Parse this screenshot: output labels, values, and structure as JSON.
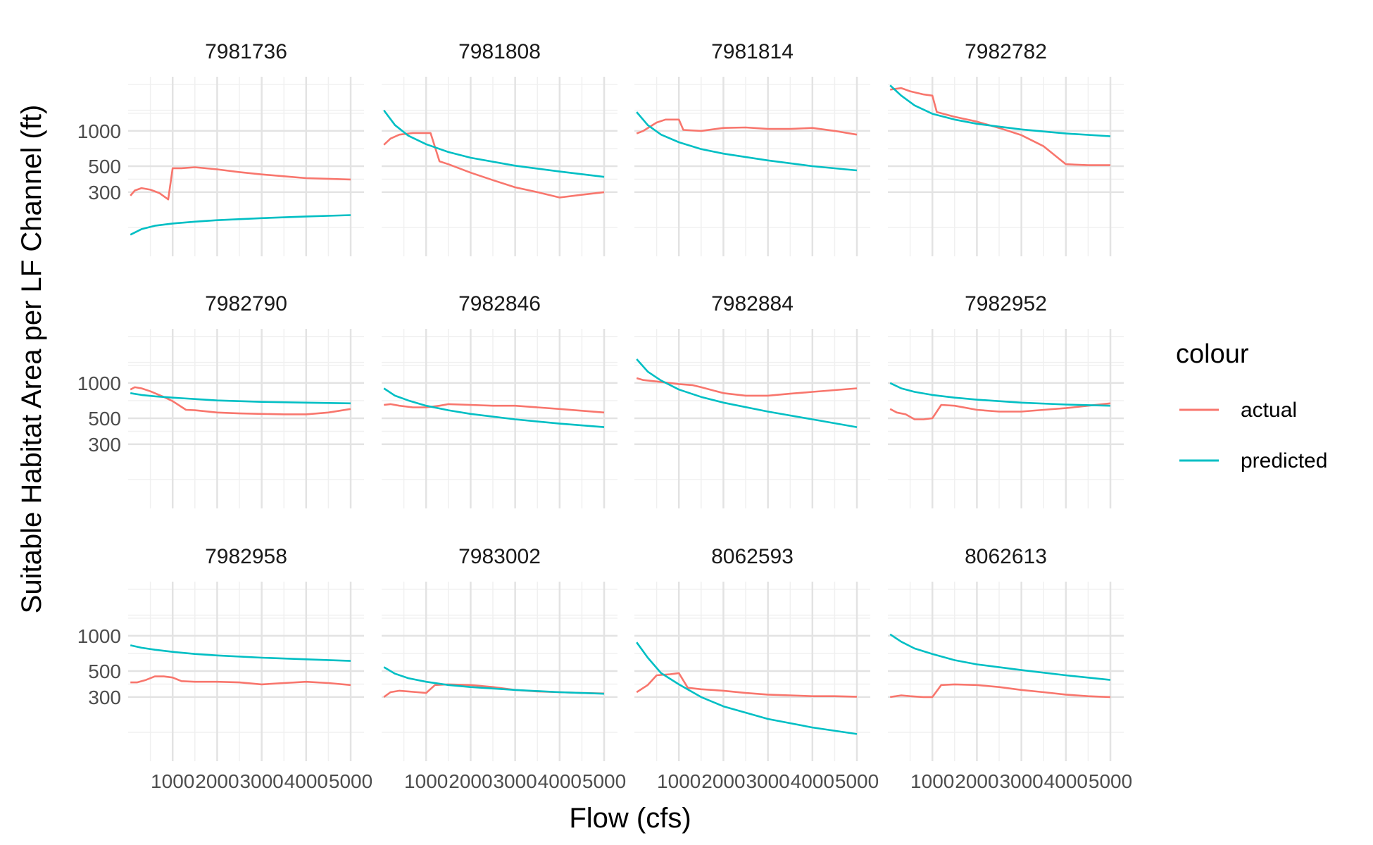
{
  "chart_data": {
    "type": "line",
    "facet_layout": "3 rows x 4 columns, shared axes",
    "xlabel": "Flow (cfs)",
    "ylabel": "Suitable Habitat Area per LF Channel (ft)",
    "y_scale": "log",
    "xlim": [
      0,
      5300
    ],
    "ylim": [
      85,
      2900
    ],
    "x_ticks": [
      1000,
      2000,
      3000,
      4000,
      5000
    ],
    "x_tick_labels": [
      "1000",
      "2000",
      "3000",
      "4000",
      "5000"
    ],
    "y_ticks": [
      300,
      500,
      1000
    ],
    "y_tick_labels": [
      "300",
      "500",
      "1000"
    ],
    "grid": true,
    "legend": {
      "title": "colour",
      "position": "right",
      "entries": [
        {
          "label": "actual",
          "color": "#F8766D"
        },
        {
          "label": "predicted",
          "color": "#00BFC4"
        }
      ]
    },
    "series_colors": {
      "actual": "#F8766D",
      "predicted": "#00BFC4"
    },
    "panels": [
      {
        "title": "7981736",
        "actual": [
          [
            50,
            280
          ],
          [
            150,
            310
          ],
          [
            300,
            325
          ],
          [
            500,
            315
          ],
          [
            700,
            295
          ],
          [
            900,
            260
          ],
          [
            1000,
            480
          ],
          [
            1200,
            480
          ],
          [
            1500,
            490
          ],
          [
            2000,
            470
          ],
          [
            2500,
            445
          ],
          [
            3000,
            425
          ],
          [
            3500,
            410
          ],
          [
            4000,
            395
          ],
          [
            4500,
            390
          ],
          [
            5000,
            385
          ]
        ],
        "predicted": [
          [
            50,
            130
          ],
          [
            300,
            145
          ],
          [
            600,
            155
          ],
          [
            1000,
            162
          ],
          [
            1500,
            168
          ],
          [
            2000,
            173
          ],
          [
            3000,
            180
          ],
          [
            4000,
            186
          ],
          [
            5000,
            191
          ]
        ]
      },
      {
        "title": "7981808",
        "actual": [
          [
            50,
            760
          ],
          [
            200,
            860
          ],
          [
            400,
            930
          ],
          [
            700,
            960
          ],
          [
            1000,
            960
          ],
          [
            1100,
            960
          ],
          [
            1300,
            550
          ],
          [
            1500,
            520
          ],
          [
            2000,
            440
          ],
          [
            2500,
            380
          ],
          [
            3000,
            330
          ],
          [
            3500,
            300
          ],
          [
            4000,
            270
          ],
          [
            4500,
            285
          ],
          [
            5000,
            300
          ]
        ],
        "predicted": [
          [
            50,
            1500
          ],
          [
            300,
            1120
          ],
          [
            600,
            910
          ],
          [
            1000,
            770
          ],
          [
            1500,
            660
          ],
          [
            2000,
            590
          ],
          [
            3000,
            505
          ],
          [
            4000,
            450
          ],
          [
            5000,
            405
          ]
        ]
      },
      {
        "title": "7981814",
        "actual": [
          [
            50,
            950
          ],
          [
            200,
            1000
          ],
          [
            500,
            1180
          ],
          [
            700,
            1250
          ],
          [
            1000,
            1250
          ],
          [
            1100,
            1020
          ],
          [
            1500,
            1000
          ],
          [
            2000,
            1060
          ],
          [
            2500,
            1070
          ],
          [
            3000,
            1040
          ],
          [
            3500,
            1040
          ],
          [
            4000,
            1060
          ],
          [
            4500,
            1000
          ],
          [
            5000,
            930
          ]
        ],
        "predicted": [
          [
            50,
            1450
          ],
          [
            300,
            1120
          ],
          [
            600,
            930
          ],
          [
            1000,
            800
          ],
          [
            1500,
            700
          ],
          [
            2000,
            640
          ],
          [
            3000,
            560
          ],
          [
            4000,
            500
          ],
          [
            5000,
            460
          ]
        ]
      },
      {
        "title": "7982782",
        "actual": [
          [
            50,
            2250
          ],
          [
            300,
            2320
          ],
          [
            500,
            2180
          ],
          [
            800,
            2050
          ],
          [
            1000,
            2000
          ],
          [
            1100,
            1450
          ],
          [
            1500,
            1320
          ],
          [
            2000,
            1200
          ],
          [
            2500,
            1060
          ],
          [
            3000,
            920
          ],
          [
            3500,
            740
          ],
          [
            4000,
            520
          ],
          [
            4500,
            510
          ],
          [
            5000,
            510
          ]
        ],
        "predicted": [
          [
            50,
            2450
          ],
          [
            300,
            2000
          ],
          [
            600,
            1650
          ],
          [
            1000,
            1400
          ],
          [
            1500,
            1250
          ],
          [
            2000,
            1150
          ],
          [
            3000,
            1030
          ],
          [
            4000,
            950
          ],
          [
            5000,
            900
          ]
        ]
      },
      {
        "title": "7982790",
        "actual": [
          [
            50,
            880
          ],
          [
            150,
            920
          ],
          [
            300,
            900
          ],
          [
            500,
            850
          ],
          [
            800,
            760
          ],
          [
            1000,
            700
          ],
          [
            1300,
            590
          ],
          [
            1500,
            585
          ],
          [
            2000,
            560
          ],
          [
            2500,
            550
          ],
          [
            3000,
            545
          ],
          [
            3500,
            540
          ],
          [
            4000,
            540
          ],
          [
            4500,
            560
          ],
          [
            5000,
            600
          ]
        ],
        "predicted": [
          [
            50,
            820
          ],
          [
            300,
            790
          ],
          [
            600,
            770
          ],
          [
            1000,
            750
          ],
          [
            1500,
            730
          ],
          [
            2000,
            710
          ],
          [
            3000,
            690
          ],
          [
            4000,
            680
          ],
          [
            5000,
            670
          ]
        ]
      },
      {
        "title": "7982846",
        "actual": [
          [
            50,
            650
          ],
          [
            200,
            660
          ],
          [
            400,
            640
          ],
          [
            700,
            620
          ],
          [
            1000,
            620
          ],
          [
            1300,
            640
          ],
          [
            1500,
            660
          ],
          [
            2000,
            650
          ],
          [
            2500,
            640
          ],
          [
            3000,
            640
          ],
          [
            3500,
            620
          ],
          [
            4000,
            600
          ],
          [
            4500,
            580
          ],
          [
            5000,
            560
          ]
        ],
        "predicted": [
          [
            50,
            900
          ],
          [
            300,
            780
          ],
          [
            600,
            710
          ],
          [
            1000,
            640
          ],
          [
            1500,
            585
          ],
          [
            2000,
            545
          ],
          [
            3000,
            490
          ],
          [
            4000,
            450
          ],
          [
            5000,
            420
          ]
        ]
      },
      {
        "title": "7982884",
        "actual": [
          [
            50,
            1100
          ],
          [
            200,
            1060
          ],
          [
            400,
            1040
          ],
          [
            700,
            1010
          ],
          [
            1000,
            980
          ],
          [
            1300,
            960
          ],
          [
            1500,
            920
          ],
          [
            2000,
            820
          ],
          [
            2500,
            780
          ],
          [
            3000,
            780
          ],
          [
            3500,
            810
          ],
          [
            4000,
            840
          ],
          [
            4500,
            870
          ],
          [
            5000,
            900
          ]
        ],
        "predicted": [
          [
            50,
            1600
          ],
          [
            300,
            1250
          ],
          [
            600,
            1050
          ],
          [
            1000,
            880
          ],
          [
            1500,
            760
          ],
          [
            2000,
            680
          ],
          [
            3000,
            570
          ],
          [
            4000,
            490
          ],
          [
            5000,
            420
          ]
        ]
      },
      {
        "title": "7982952",
        "actual": [
          [
            50,
            600
          ],
          [
            200,
            560
          ],
          [
            400,
            540
          ],
          [
            600,
            490
          ],
          [
            800,
            490
          ],
          [
            1000,
            500
          ],
          [
            1200,
            650
          ],
          [
            1500,
            640
          ],
          [
            2000,
            590
          ],
          [
            2500,
            570
          ],
          [
            3000,
            570
          ],
          [
            3500,
            590
          ],
          [
            4000,
            610
          ],
          [
            4500,
            640
          ],
          [
            5000,
            670
          ]
        ],
        "predicted": [
          [
            50,
            1000
          ],
          [
            300,
            900
          ],
          [
            600,
            840
          ],
          [
            1000,
            790
          ],
          [
            1500,
            750
          ],
          [
            2000,
            720
          ],
          [
            3000,
            680
          ],
          [
            4000,
            655
          ],
          [
            5000,
            640
          ]
        ]
      },
      {
        "title": "7982958",
        "actual": [
          [
            50,
            400
          ],
          [
            200,
            400
          ],
          [
            400,
            420
          ],
          [
            600,
            450
          ],
          [
            800,
            450
          ],
          [
            1000,
            440
          ],
          [
            1200,
            410
          ],
          [
            1500,
            405
          ],
          [
            2000,
            405
          ],
          [
            2500,
            400
          ],
          [
            3000,
            385
          ],
          [
            3500,
            395
          ],
          [
            4000,
            405
          ],
          [
            4500,
            395
          ],
          [
            5000,
            380
          ]
        ],
        "predicted": [
          [
            50,
            830
          ],
          [
            300,
            790
          ],
          [
            600,
            760
          ],
          [
            1000,
            730
          ],
          [
            1500,
            700
          ],
          [
            2000,
            680
          ],
          [
            3000,
            650
          ],
          [
            4000,
            630
          ],
          [
            5000,
            610
          ]
        ]
      },
      {
        "title": "7983002",
        "actual": [
          [
            50,
            300
          ],
          [
            200,
            330
          ],
          [
            400,
            340
          ],
          [
            600,
            335
          ],
          [
            800,
            330
          ],
          [
            1000,
            325
          ],
          [
            1200,
            380
          ],
          [
            1500,
            385
          ],
          [
            2000,
            380
          ],
          [
            2500,
            365
          ],
          [
            3000,
            345
          ],
          [
            3500,
            335
          ],
          [
            4000,
            330
          ],
          [
            4500,
            325
          ],
          [
            5000,
            322
          ]
        ],
        "predicted": [
          [
            50,
            540
          ],
          [
            300,
            475
          ],
          [
            600,
            435
          ],
          [
            1000,
            405
          ],
          [
            1500,
            380
          ],
          [
            2000,
            365
          ],
          [
            3000,
            345
          ],
          [
            4000,
            330
          ],
          [
            5000,
            320
          ]
        ]
      },
      {
        "title": "8062593",
        "actual": [
          [
            50,
            330
          ],
          [
            300,
            380
          ],
          [
            500,
            460
          ],
          [
            800,
            470
          ],
          [
            1000,
            480
          ],
          [
            1200,
            360
          ],
          [
            1500,
            350
          ],
          [
            2000,
            340
          ],
          [
            2500,
            325
          ],
          [
            3000,
            315
          ],
          [
            3500,
            310
          ],
          [
            4000,
            305
          ],
          [
            4500,
            305
          ],
          [
            5000,
            302
          ]
        ],
        "predicted": [
          [
            50,
            880
          ],
          [
            300,
            650
          ],
          [
            600,
            480
          ],
          [
            1000,
            385
          ],
          [
            1500,
            300
          ],
          [
            2000,
            250
          ],
          [
            3000,
            195
          ],
          [
            4000,
            165
          ],
          [
            5000,
            145
          ]
        ]
      },
      {
        "title": "8062613",
        "actual": [
          [
            50,
            300
          ],
          [
            300,
            310
          ],
          [
            500,
            305
          ],
          [
            800,
            300
          ],
          [
            1000,
            300
          ],
          [
            1200,
            380
          ],
          [
            1500,
            385
          ],
          [
            2000,
            380
          ],
          [
            2500,
            365
          ],
          [
            3000,
            345
          ],
          [
            3500,
            330
          ],
          [
            4000,
            315
          ],
          [
            4500,
            305
          ],
          [
            5000,
            300
          ]
        ],
        "predicted": [
          [
            50,
            1030
          ],
          [
            300,
            890
          ],
          [
            600,
            780
          ],
          [
            1000,
            700
          ],
          [
            1500,
            620
          ],
          [
            2000,
            570
          ],
          [
            3000,
            510
          ],
          [
            4000,
            460
          ],
          [
            5000,
            420
          ]
        ]
      }
    ]
  }
}
